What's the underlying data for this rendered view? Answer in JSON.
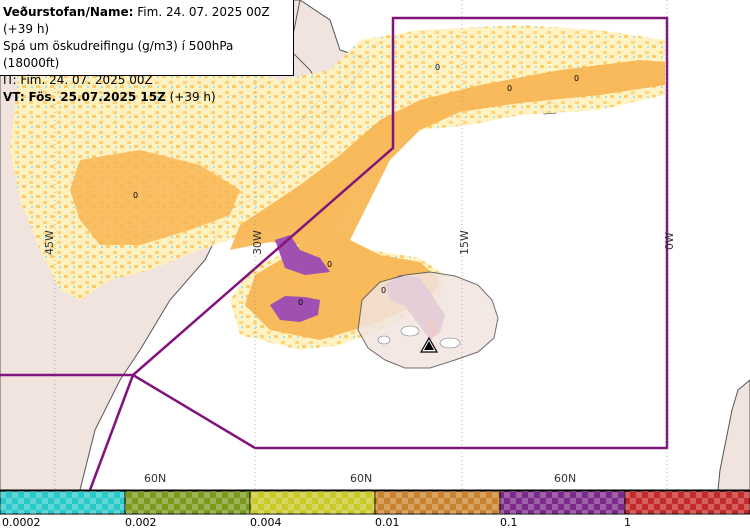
{
  "header": {
    "line1_label": "Veðurstofan/Name:",
    "line1_value": "Fim. 24. 07. 2025 00Z (+39 h)",
    "line2": "Spá um öskudreifingu (g/m3) í 500hPa (18000ft)",
    "line3": "IT: Fim. 24. 07. 2025 00Z",
    "line4_label": "VT:",
    "line4_value": "Fös. 25.07.2025 15Z",
    "line4_suffix": "(+39 h)"
  },
  "map_labels": {
    "lon_45w": "45W",
    "lon_30w": "30W",
    "lon_15w": "15W",
    "lon_0w": "0W",
    "lat_60n": "60N",
    "zero": "0"
  },
  "legend": {
    "labels": [
      "0.0002",
      "0.002",
      "0.004",
      "0.01",
      "0.1",
      "1"
    ],
    "colors": [
      "#29c9c9",
      "#7a9a1c",
      "#c9c92a",
      "#c9832e",
      "#7d2b8a",
      "#c42a2a"
    ]
  },
  "colors": {
    "land": "#f1e4df",
    "sea": "#ffffff",
    "ash_light": "#ffe39a",
    "ash_orange": "#f9b552",
    "ash_purple": "#a050b0",
    "boundary": "#80147c",
    "coast": "#555555"
  }
}
